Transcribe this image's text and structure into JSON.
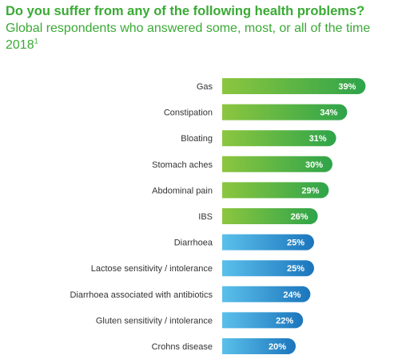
{
  "title": "Do you suffer from any of the following health problems?",
  "subtitle": "Global respondents who answered some, most, or all of the time 2018",
  "subtitle_note": "1",
  "colors": {
    "title": "#3aaa35",
    "green_start": "#8cc63f",
    "green_end": "#2ea44a",
    "blue_start": "#5bc0eb",
    "blue_end": "#1b75bc",
    "label_text": "#333333",
    "value_text": "#ffffff"
  },
  "chart_data": {
    "type": "bar",
    "orientation": "horizontal",
    "title": "Do you suffer from any of the following health problems?",
    "subtitle": "Global respondents who answered some, most, or all of the time 2018",
    "categories": [
      "Gas",
      "Constipation",
      "Bloating",
      "Stomach aches",
      "Abdominal pain",
      "IBS",
      "Diarrhoea",
      "Lactose sensitivity / intolerance",
      "Diarrhoea associated with antibiotics",
      "Gluten sensitivity / intolerance",
      "Crohns disease"
    ],
    "values": [
      39,
      34,
      31,
      30,
      29,
      26,
      25,
      25,
      24,
      22,
      20
    ],
    "value_labels": [
      "39%",
      "34%",
      "31%",
      "30%",
      "29%",
      "26%",
      "25%",
      "25%",
      "24%",
      "22%",
      "20%"
    ],
    "color_groups": [
      "green",
      "green",
      "green",
      "green",
      "green",
      "green",
      "blue",
      "blue",
      "blue",
      "blue",
      "blue"
    ],
    "unit": "%",
    "xlabel": "",
    "ylabel": "",
    "grid": false,
    "legend": "none"
  }
}
